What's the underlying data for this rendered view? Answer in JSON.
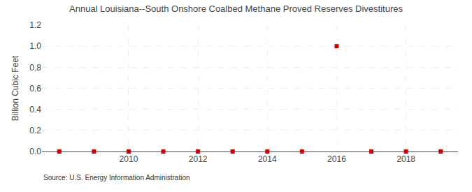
{
  "chart_data": {
    "type": "scatter",
    "title": "Annual Louisiana--South Onshore Coalbed Methane Proved Reserves Divestitures",
    "ylabel": "Billion Cubic Feet",
    "annotations": [
      "Source: U.S. Energy Information Administration"
    ],
    "x": [
      2008,
      2009,
      2010,
      2011,
      2012,
      2013,
      2014,
      2015,
      2016,
      2017,
      2018,
      2019
    ],
    "values": [
      0.0,
      0.0,
      0.0,
      0.0,
      0.0,
      0.0,
      0.0,
      0.0,
      1.0,
      0.0,
      0.0,
      0.0
    ],
    "color": "#cc0000",
    "marker": "square",
    "xlim": [
      2007.5,
      2019.5
    ],
    "xticks": [
      2010,
      2012,
      2014,
      2016,
      2018
    ],
    "ylim": [
      0.0,
      1.2
    ],
    "yticks": [
      {
        "value": 0.0,
        "label": "0.0"
      },
      0.2,
      0.4,
      0.6,
      0.8,
      {
        "value": 1.0,
        "label": "1.0"
      },
      1.2
    ],
    "grid": true
  }
}
